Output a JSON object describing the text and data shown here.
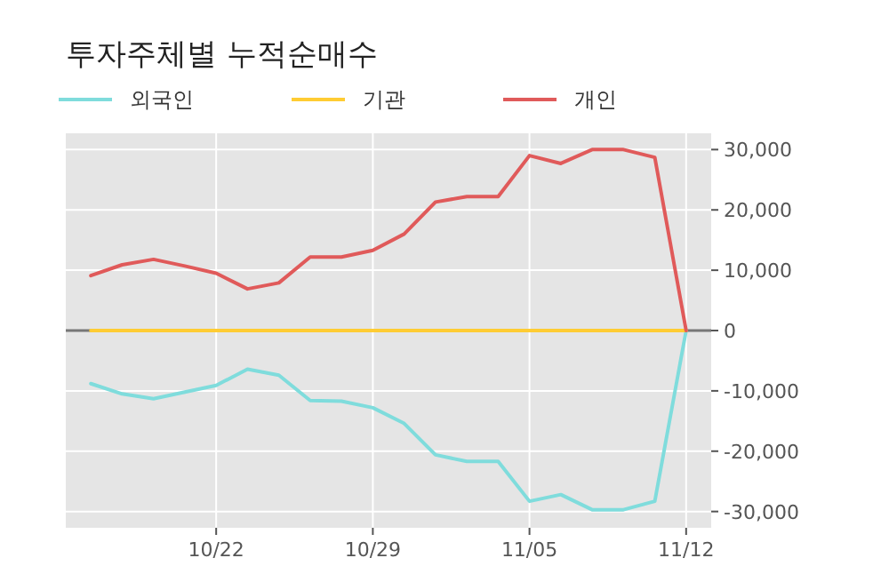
{
  "chart_data": {
    "type": "line",
    "title": "투자주체별 누적순매수",
    "categories": [
      null,
      null,
      null,
      null,
      "10/22",
      null,
      null,
      null,
      null,
      "10/29",
      null,
      null,
      null,
      null,
      "11/05",
      null,
      null,
      null,
      null,
      "11/12"
    ],
    "series": [
      {
        "name": "외국인",
        "color": "#7fdcdc",
        "values": [
          -8800,
          -10500,
          -11300,
          -10200,
          -9100,
          -6400,
          -7400,
          -11600,
          -11700,
          -12800,
          -15400,
          -20600,
          -21700,
          -21700,
          -28300,
          -27200,
          -29700,
          -29700,
          -28300,
          0
        ]
      },
      {
        "name": "기관",
        "color": "#ffcc33",
        "values": [
          0,
          0,
          0,
          0,
          0,
          0,
          0,
          0,
          0,
          0,
          0,
          0,
          0,
          0,
          0,
          0,
          0,
          0,
          0,
          0
        ]
      },
      {
        "name": "개인",
        "color": "#e05a5a",
        "values": [
          9100,
          10900,
          11800,
          10700,
          9500,
          6900,
          7900,
          12200,
          12200,
          13300,
          16000,
          21300,
          22200,
          22200,
          29000,
          27700,
          30000,
          30000,
          28700,
          0
        ]
      }
    ],
    "ylim": [
      -32700,
      32700
    ],
    "yticks": [
      {
        "value": -30000,
        "label": "-30,000"
      },
      {
        "value": -20000,
        "label": "-20,000"
      },
      {
        "value": -10000,
        "label": "-10,000"
      },
      0,
      {
        "value": 10000,
        "label": "10,000"
      },
      {
        "value": 20000,
        "label": "20,000"
      },
      {
        "value": 30000,
        "label": "30,000"
      }
    ],
    "ref_lines": [
      {
        "axis": "y",
        "value": 0,
        "color": "#777777"
      }
    ],
    "grid": true,
    "legend": "top left"
  }
}
